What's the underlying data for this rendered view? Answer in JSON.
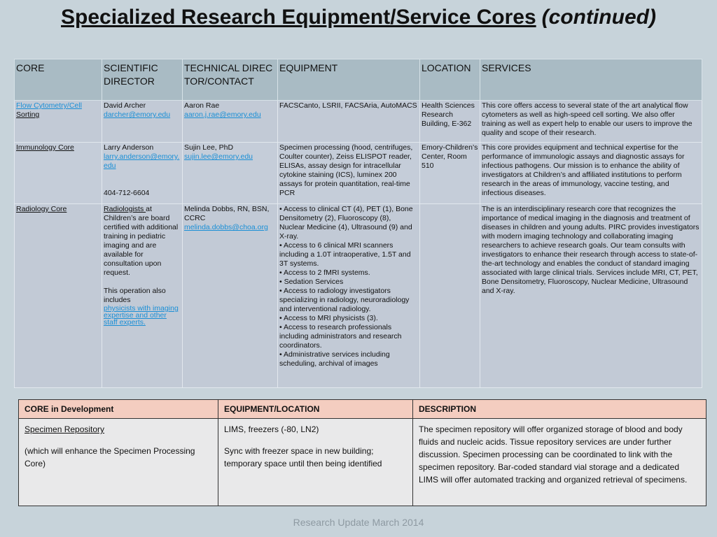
{
  "title": {
    "main": "Specialized Research Equipment/Service Cores",
    "continued": "(continued)"
  },
  "cores_table": {
    "headers": {
      "core": "CORE",
      "scientific_director": "SCIENTIFIC DIRECTOR",
      "technical_director": "TECHNICAL DIRECTOR/CONTACT",
      "equipment": "EQUIPMENT",
      "location": "LOCATION",
      "services": "SERVICES"
    },
    "rows": [
      {
        "core_link": "Flow Cytometry/Cell ",
        "core_rest": "Sorting",
        "sci_name": "David Archer",
        "sci_email": "darcher@emory.edu",
        "tech_name": "Aaron Rae",
        "tech_email": "aaron.j.rae@emory.edu",
        "equipment": "FACSCanto, LSRII, FACSAria, AutoMACS",
        "location": "Health Sciences Research Building, E-362",
        "services": "This core offers access to several state of the art analytical flow cytometers as well as high-speed cell sorting. We also offer training as well as expert help to enable our users to improve the quality and scope of their research."
      },
      {
        "core": "Immunology Core",
        "sci_name": "Larry Anderson",
        "sci_email": "larry.anderson@emory.edu",
        "sci_phone": "404-712-6604",
        "tech_name": "Sujin Lee,  PhD",
        "tech_email": "sujin.lee@emory.edu",
        "equipment": "Specimen processing (hood, centrifuges, Coulter counter), Zeiss ELISPOT reader, ELISAs, assay design for intracellular cytokine staining (ICS), luminex 200 assays for protein quantitation, real-time PCR",
        "location": "Emory-Children’s Center, Room 510",
        "services": "This core provides equipment and technical expertise for the performance of immunologic assays and diagnostic assays for infectious pathogens. Our mission is to enhance the ability of investigators at Children’s and affiliated institutions to perform research in the areas of immunology, vaccine testing, and infectious diseases."
      },
      {
        "core": "Radiology Core ",
        "sci_link": "Radiologists ",
        "sci_text": "at Children’s are board certified with additional training in pediatric imaging and are available for consultation upon request.",
        "sci_text2": "This operation also includes",
        "sci_link2": "physicists with imaging expertise and other staff experts.",
        "tech_name": "Melinda Dobbs, RN, BSN, CCRC",
        "tech_email": "melinda.dobbs@choa.org",
        "equipment_items": [
          "• Access to clinical CT (4), PET (1), Bone Densitometry (2), Fluoroscopy (8), Nuclear Medicine (4), Ultrasound (9) and X-ray.",
          "• Access to 6 clinical MRI scanners including a 1.0T intraoperative, 1.5T and 3T systems.",
          "• Access to 2 fMRI systems.",
          "• Sedation Services",
          "• Access to radiology investigators specializing in radiology, neuroradiology and interventional radiology.",
          "• Access to MRI physicists (3).",
          "• Access to research professionals including administrators and research coordinators.",
          "• Administrative services including scheduling, archival of images"
        ],
        "location": "",
        "services": "The is an interdisciplinary research core that recognizes the importance of medical imaging in the diagnosis and treatment of diseases in children and young adults. PIRC provides investigators with modern imaging technology and collaborating imaging researchers to achieve research goals. Our team consults with investigators to enhance their research through access to state-of-the-art technology and enables the conduct of standard imaging associated with large clinical trials. Services include MRI, CT, PET, Bone Densitometry, Fluoroscopy, Nuclear Medicine, Ultrasound and X-ray."
      }
    ]
  },
  "dev_table": {
    "headers": {
      "core": "CORE in Development",
      "equipment": "EQUIPMENT/LOCATION",
      "description": "DESCRIPTION"
    },
    "row": {
      "core": "Specimen Repository",
      "core_note": "(which will enhance the Specimen Processing Core)",
      "equipment_line1": "LIMS, freezers (-80, LN2)",
      "equipment_line2": "Sync with freezer space in new building; temporary space until then being identified",
      "description": "The specimen repository will offer organized storage of blood and body fluids and nucleic acids. Tissue repository services are under further discussion. Specimen processing can be coordinated to link with the specimen repository. Bar-coded standard vial storage and a dedicated LIMS will offer automated tracking and organized retrieval of specimens."
    }
  },
  "footer": "Research Update March 2014",
  "colors": {
    "background": "#c7d3da",
    "header_fill": "#a9bbc4",
    "cell_fill": "#c2cad6",
    "dev_header_fill": "#f4cdc0",
    "link": "#1a8fd6"
  }
}
